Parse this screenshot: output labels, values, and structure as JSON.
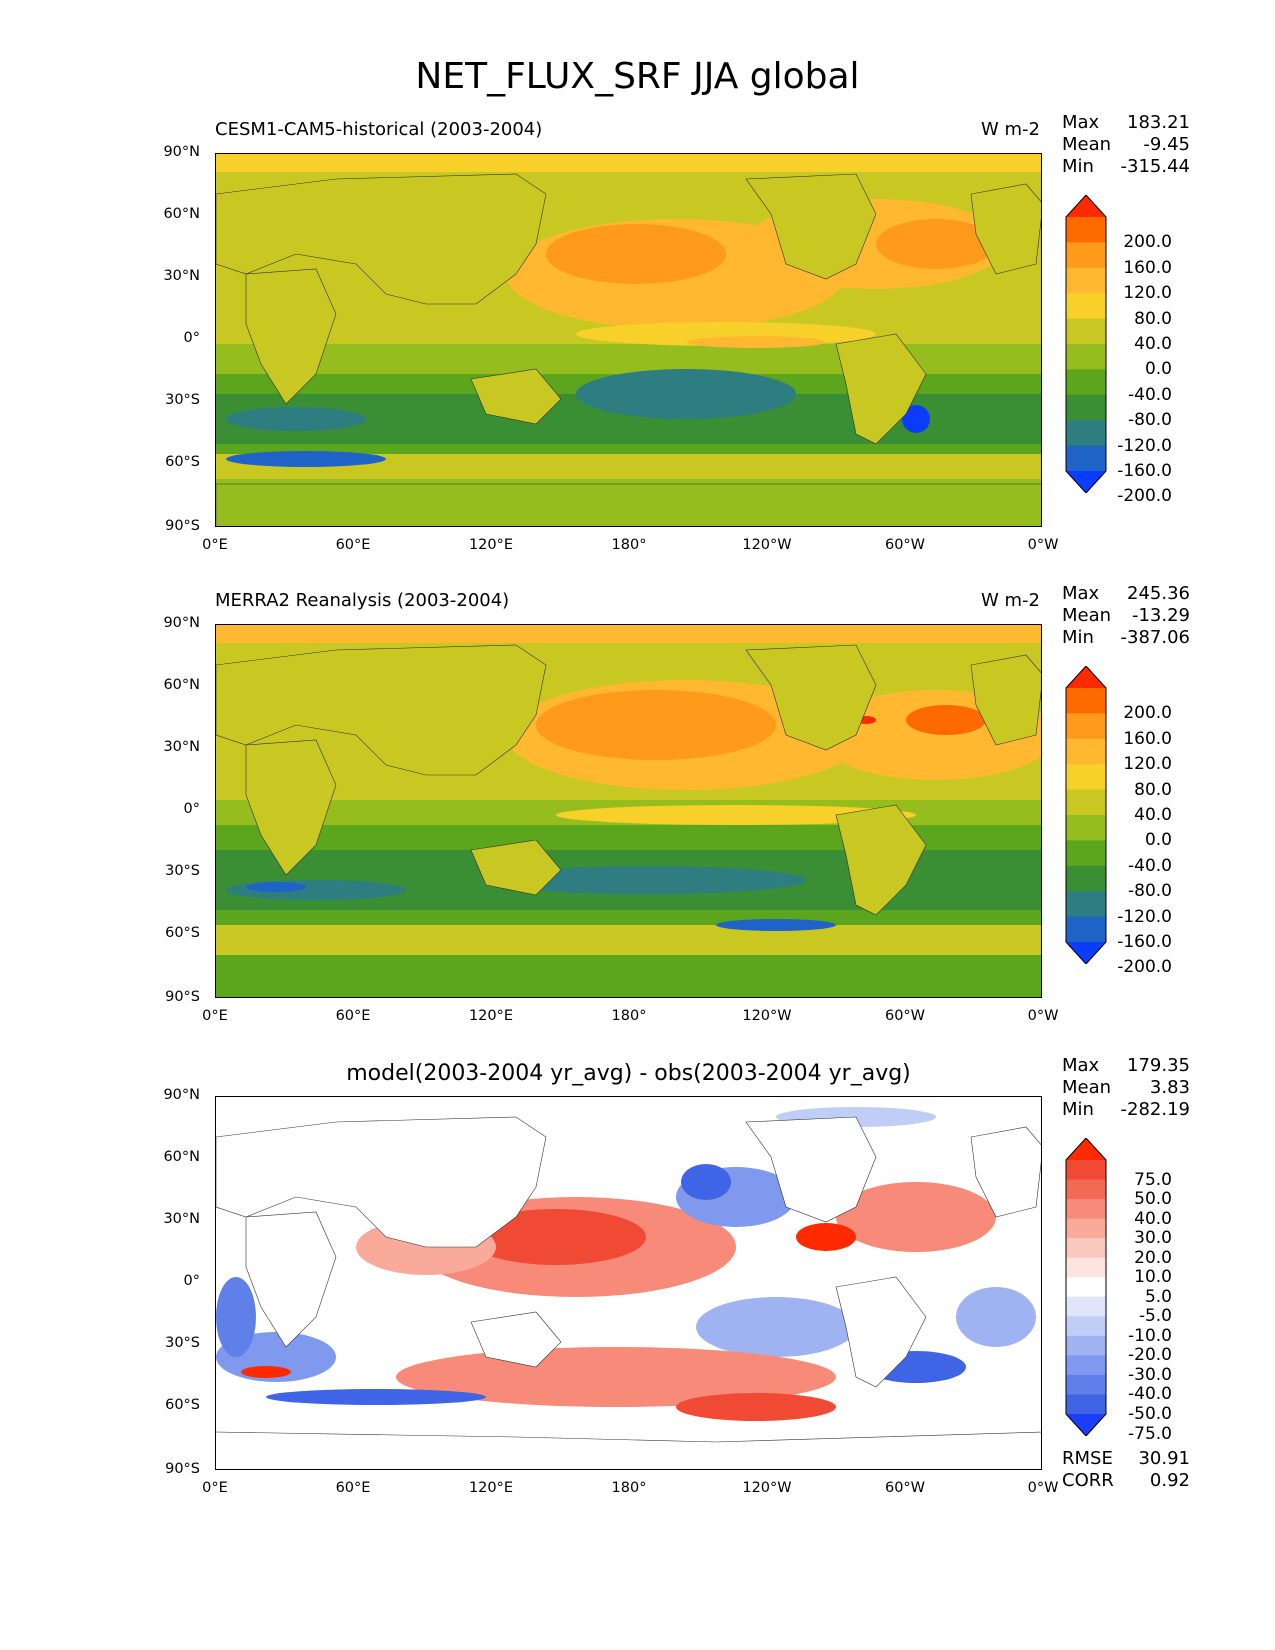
{
  "suptitle": "NET_FLUX_SRF JJA global",
  "chart_data": [
    {
      "type": "heatmap",
      "title_left": "CESM1-CAM5-historical (2003-2004)",
      "title_right": "W m-2",
      "stats": {
        "max_label": "Max",
        "max": "183.21",
        "mean_label": "Mean",
        "mean": "-9.45",
        "min_label": "Min",
        "min": "-315.44"
      },
      "xticks": [
        "0°E",
        "60°E",
        "120°E",
        "180°",
        "120°W",
        "60°W",
        "0°W"
      ],
      "yticks": [
        "90°N",
        "60°N",
        "30°N",
        "0°",
        "30°S",
        "60°S",
        "90°S"
      ],
      "xlim": [
        0,
        360
      ],
      "ylim": [
        -90,
        90
      ],
      "colorbar_levels": [
        "200.0",
        "160.0",
        "120.0",
        "80.0",
        "40.0",
        "0.0",
        "-40.0",
        "-80.0",
        "-120.0",
        "-160.0",
        "-200.0"
      ],
      "colorbar_colors": [
        "#ff2a00",
        "#ff6a00",
        "#ff9a1a",
        "#ffb830",
        "#f7d02a",
        "#c9c823",
        "#96bd1e",
        "#5ba61c",
        "#3a8e34",
        "#2e7d80",
        "#1f63c8",
        "#0a3dff"
      ]
    },
    {
      "type": "heatmap",
      "title_left": "MERRA2 Reanalysis (2003-2004)",
      "title_right": "W m-2",
      "stats": {
        "max_label": "Max",
        "max": "245.36",
        "mean_label": "Mean",
        "mean": "-13.29",
        "min_label": "Min",
        "min": "-387.06"
      },
      "xticks": [
        "0°E",
        "60°E",
        "120°E",
        "180°",
        "120°W",
        "60°W",
        "0°W"
      ],
      "yticks": [
        "90°N",
        "60°N",
        "30°N",
        "0°",
        "30°S",
        "60°S",
        "90°S"
      ],
      "xlim": [
        0,
        360
      ],
      "ylim": [
        -90,
        90
      ],
      "colorbar_levels": [
        "200.0",
        "160.0",
        "120.0",
        "80.0",
        "40.0",
        "0.0",
        "-40.0",
        "-80.0",
        "-120.0",
        "-160.0",
        "-200.0"
      ],
      "colorbar_colors": [
        "#ff2a00",
        "#ff6a00",
        "#ff9a1a",
        "#ffb830",
        "#f7d02a",
        "#c9c823",
        "#96bd1e",
        "#5ba61c",
        "#3a8e34",
        "#2e7d80",
        "#1f63c8",
        "#0a3dff"
      ]
    },
    {
      "type": "heatmap",
      "title_center": "model(2003-2004 yr_avg) - obs(2003-2004 yr_avg)",
      "stats": {
        "max_label": "Max",
        "max": "179.35",
        "mean_label": "Mean",
        "mean": "3.83",
        "min_label": "Min",
        "min": "-282.19"
      },
      "xticks": [
        "0°E",
        "60°E",
        "120°E",
        "180°",
        "120°W",
        "60°W",
        "0°W"
      ],
      "yticks": [
        "90°N",
        "60°N",
        "30°N",
        "0°",
        "30°S",
        "60°S",
        "90°S"
      ],
      "xlim": [
        0,
        360
      ],
      "ylim": [
        -90,
        90
      ],
      "colorbar_levels": [
        "75.0",
        "50.0",
        "40.0",
        "30.0",
        "20.0",
        "10.0",
        "5.0",
        "-5.0",
        "-10.0",
        "-20.0",
        "-30.0",
        "-40.0",
        "-50.0",
        "-75.0"
      ],
      "colorbar_colors": [
        "#ff2a00",
        "#f04a35",
        "#f36a55",
        "#f78a78",
        "#f9aa9b",
        "#fbc8bd",
        "#fde4de",
        "#ffffff",
        "#dfe6fb",
        "#bfcdf7",
        "#9fb3f2",
        "#7f99ee",
        "#5f7fe9",
        "#3f64e5",
        "#1a3dff"
      ],
      "rmse_label": "RMSE",
      "rmse": "30.91",
      "corr_label": "CORR",
      "corr": "0.92"
    }
  ]
}
